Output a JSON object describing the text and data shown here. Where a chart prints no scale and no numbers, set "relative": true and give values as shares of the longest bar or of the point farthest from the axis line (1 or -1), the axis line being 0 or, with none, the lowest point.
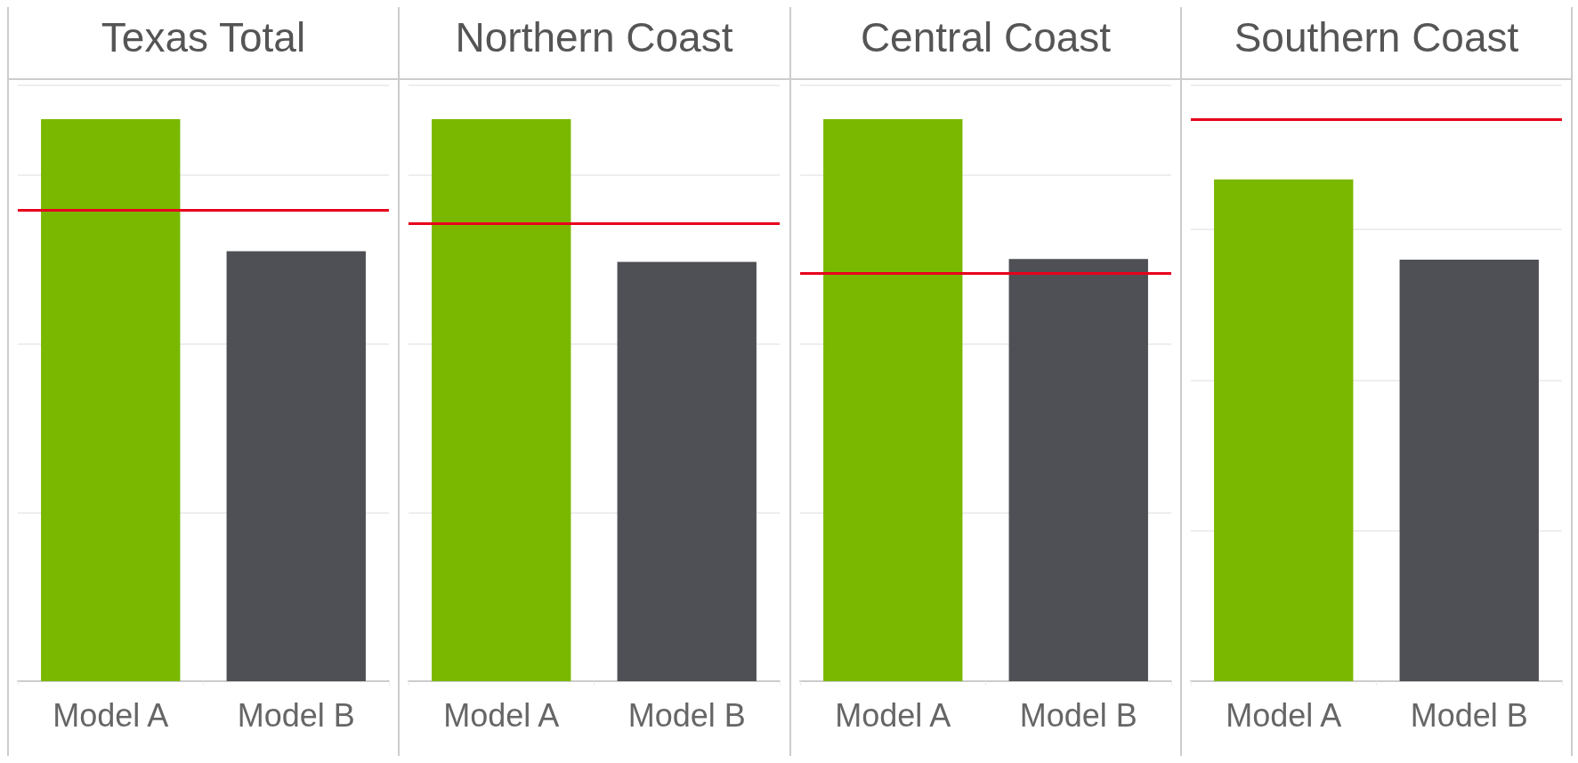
{
  "chart_data": [
    {
      "type": "bar",
      "title": "Texas Total",
      "categories": [
        "Model A",
        "Model B"
      ],
      "values": [
        1,
        0.765
      ],
      "colors": [
        "#7ab800",
        "#4f5055"
      ],
      "relative": true,
      "grid": "y",
      "ref_lines": [
        {
          "axis": "y",
          "value": 0.838,
          "color": "#e8001c"
        }
      ]
    },
    {
      "type": "bar",
      "title": "Northern Coast",
      "categories": [
        "Model A",
        "Model B"
      ],
      "values": [
        1,
        0.746
      ],
      "colors": [
        "#7ab800",
        "#4f5055"
      ],
      "relative": true,
      "grid": "y",
      "ref_lines": [
        {
          "axis": "y",
          "value": 0.815,
          "color": "#e8001c"
        }
      ]
    },
    {
      "type": "bar",
      "title": "Central Coast",
      "categories": [
        "Model A",
        "Model B"
      ],
      "values": [
        1,
        0.751
      ],
      "colors": [
        "#7ab800",
        "#4f5055"
      ],
      "relative": true,
      "grid": "y",
      "ref_lines": [
        {
          "axis": "y",
          "value": 0.725,
          "color": "#e8001c"
        }
      ]
    },
    {
      "type": "bar",
      "title": "Southern Coast",
      "categories": [
        "Model A",
        "Model B"
      ],
      "values": [
        1,
        0.84
      ],
      "colors": [
        "#7ab800",
        "#4f5055"
      ],
      "relative": true,
      "grid": "y",
      "ref_lines": [
        {
          "axis": "y",
          "value": 1.12,
          "color": "#e8001c"
        }
      ]
    }
  ]
}
